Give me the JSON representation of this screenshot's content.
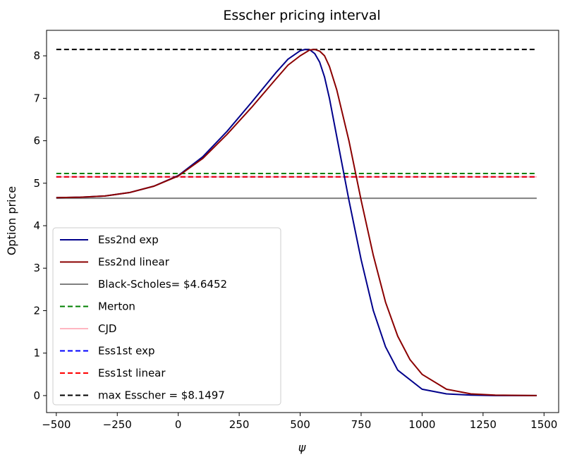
{
  "chart_data": {
    "type": "line",
    "title": "Esscher pricing interval",
    "xlabel": "ψ",
    "ylabel": "Option price",
    "xlim": [
      -540,
      1560
    ],
    "ylim": [
      -0.4,
      8.6
    ],
    "xticks": [
      -500,
      -250,
      0,
      250,
      500,
      750,
      1000,
      1250,
      1500
    ],
    "xtick_labels": [
      "−500",
      "−250",
      "0",
      "250",
      "500",
      "750",
      "1000",
      "1250",
      "1500"
    ],
    "yticks": [
      0,
      1,
      2,
      3,
      4,
      5,
      6,
      7,
      8
    ],
    "ytick_labels": [
      "0",
      "1",
      "2",
      "3",
      "4",
      "5",
      "6",
      "7",
      "8"
    ],
    "grid": false,
    "legend_position": "lower-left",
    "series": [
      {
        "name": "Ess2nd exp",
        "color": "#00008b",
        "dash": "solid",
        "x": [
          -500,
          -400,
          -300,
          -200,
          -100,
          0,
          100,
          200,
          300,
          400,
          450,
          500,
          520,
          540,
          560,
          580,
          600,
          620,
          650,
          700,
          750,
          800,
          850,
          900,
          1000,
          1100,
          1200,
          1300,
          1470
        ],
        "y": [
          4.66,
          4.67,
          4.7,
          4.78,
          4.93,
          5.18,
          5.62,
          6.22,
          6.9,
          7.6,
          7.92,
          8.12,
          8.15,
          8.14,
          8.05,
          7.85,
          7.5,
          7.0,
          6.1,
          4.6,
          3.2,
          2.0,
          1.15,
          0.6,
          0.15,
          0.04,
          0.01,
          0.0,
          0.0
        ]
      },
      {
        "name": "Ess2nd linear",
        "color": "#8b0000",
        "dash": "solid",
        "x": [
          -500,
          -400,
          -300,
          -200,
          -100,
          0,
          100,
          200,
          300,
          400,
          450,
          500,
          540,
          560,
          580,
          600,
          620,
          650,
          700,
          750,
          800,
          850,
          900,
          950,
          1000,
          1100,
          1200,
          1300,
          1470
        ],
        "y": [
          4.66,
          4.67,
          4.7,
          4.78,
          4.93,
          5.17,
          5.58,
          6.15,
          6.78,
          7.45,
          7.78,
          8.0,
          8.14,
          8.15,
          8.11,
          8.0,
          7.75,
          7.2,
          6.0,
          4.6,
          3.3,
          2.2,
          1.4,
          0.85,
          0.5,
          0.15,
          0.04,
          0.01,
          0.0
        ]
      },
      {
        "name": "Black-Scholes= $4.6452",
        "color": "#808080",
        "dash": "solid",
        "x": [
          -500,
          1470
        ],
        "y": [
          4.6452,
          4.6452
        ]
      },
      {
        "name": "Merton",
        "color": "#008000",
        "dash": "dashed",
        "x": [
          -500,
          1470
        ],
        "y": [
          5.23,
          5.23
        ]
      },
      {
        "name": "CJD",
        "color": "#ffb6c1",
        "dash": "solid",
        "x": [
          -500,
          1470
        ],
        "y": [
          5.15,
          5.15
        ]
      },
      {
        "name": "Ess1st exp",
        "color": "#0000ff",
        "dash": "dashed",
        "x": [
          -500,
          1470
        ],
        "y": [
          5.15,
          5.15
        ]
      },
      {
        "name": "Ess1st linear",
        "color": "#ff0000",
        "dash": "dashed",
        "x": [
          -500,
          1470
        ],
        "y": [
          5.15,
          5.15
        ]
      },
      {
        "name": "max Esscher = $8.1497",
        "color": "#000000",
        "dash": "dashed",
        "x": [
          -500,
          1470
        ],
        "y": [
          8.1497,
          8.1497
        ]
      }
    ]
  }
}
